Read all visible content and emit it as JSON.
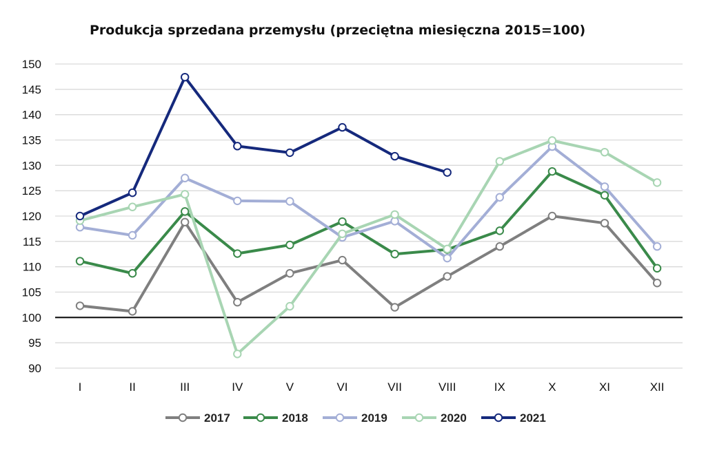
{
  "chart_data": {
    "type": "line",
    "title": "Produkcja sprzedana przemysłu (przeciętna miesięczna 2015=100)",
    "categories": [
      "I",
      "II",
      "III",
      "IV",
      "V",
      "VI",
      "VII",
      "VIII",
      "IX",
      "X",
      "XI",
      "XII"
    ],
    "y_ticks": [
      "90",
      "95",
      "100",
      "105",
      "110",
      "115",
      "120",
      "125",
      "130",
      "135",
      "140",
      "145",
      "150"
    ],
    "ylim": [
      90,
      150
    ],
    "reference_line": 100,
    "grid": true,
    "legend_position": "bottom",
    "series": [
      {
        "name": "2017",
        "color": "#7f7f7f",
        "values": [
          102.3,
          101.2,
          118.8,
          103.0,
          108.7,
          111.3,
          102.0,
          108.1,
          114.0,
          120.0,
          118.6,
          106.8
        ]
      },
      {
        "name": "2018",
        "color": "#3a8a4a",
        "values": [
          111.1,
          108.7,
          120.9,
          112.6,
          114.3,
          118.9,
          112.5,
          113.4,
          117.1,
          128.8,
          124.1,
          109.7
        ]
      },
      {
        "name": "2019",
        "color": "#a3aed6",
        "values": [
          117.8,
          116.2,
          127.5,
          123.0,
          122.9,
          115.8,
          119.0,
          111.7,
          123.7,
          133.7,
          125.8,
          114.0
        ]
      },
      {
        "name": "2020",
        "color": "#a8d5b3",
        "values": [
          119.1,
          121.8,
          124.3,
          92.8,
          102.2,
          116.5,
          120.3,
          113.5,
          130.8,
          134.9,
          132.6,
          126.6
        ]
      },
      {
        "name": "2021",
        "color": "#15297c",
        "values": [
          120.0,
          124.6,
          147.4,
          133.8,
          132.5,
          137.5,
          131.8,
          128.6,
          null,
          null,
          null,
          null
        ]
      }
    ]
  }
}
